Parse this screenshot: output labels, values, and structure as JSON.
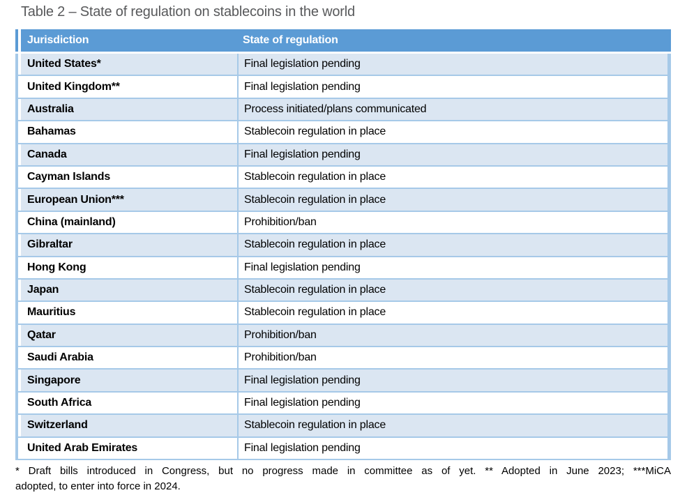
{
  "caption": "Table 2 – State of regulation on stablecoins in the world",
  "table": {
    "columns": [
      "Jurisdiction",
      "State of regulation"
    ],
    "rows": [
      {
        "jurisdiction": "United States*",
        "state": "Final legislation pending"
      },
      {
        "jurisdiction": "United Kingdom**",
        "state": "Final legislation pending"
      },
      {
        "jurisdiction": "Australia",
        "state": "Process initiated/plans communicated"
      },
      {
        "jurisdiction": "Bahamas",
        "state": "Stablecoin regulation in place"
      },
      {
        "jurisdiction": "Canada",
        "state": "Final legislation pending"
      },
      {
        "jurisdiction": "Cayman Islands",
        "state": "Stablecoin regulation in place"
      },
      {
        "jurisdiction": "European Union***",
        "state": "Stablecoin regulation in place"
      },
      {
        "jurisdiction": "China (mainland)",
        "state": "Prohibition/ban"
      },
      {
        "jurisdiction": "Gibraltar",
        "state": "Stablecoin regulation in place"
      },
      {
        "jurisdiction": "Hong Kong",
        "state": "Final legislation pending"
      },
      {
        "jurisdiction": "Japan",
        "state": "Stablecoin regulation in place"
      },
      {
        "jurisdiction": "Mauritius",
        "state": "Stablecoin regulation in place"
      },
      {
        "jurisdiction": "Qatar",
        "state": "Prohibition/ban"
      },
      {
        "jurisdiction": "Saudi Arabia",
        "state": "Prohibition/ban"
      },
      {
        "jurisdiction": "Singapore",
        "state": "Final legislation pending"
      },
      {
        "jurisdiction": "South Africa",
        "state": "Final legislation pending"
      },
      {
        "jurisdiction": "Switzerland",
        "state": "Stablecoin regulation in place"
      },
      {
        "jurisdiction": "United Arab Emirates",
        "state": "Final legislation pending"
      }
    ]
  },
  "footnote": {
    "line1": "* Draft bills introduced in Congress, but no progress made in committee as of yet. ** Adopted in June 2023; ***MiCA",
    "line2": "adopted, to enter into force in 2024.",
    "full": "* Draft bills introduced in Congress, but no progress made in committee as of yet. ** Adopted in June 2023; ***MiCA adopted, to enter into force in 2024."
  },
  "colors": {
    "header_bg": "#5B9BD5",
    "band_bg": "#DBE6F2",
    "border": "#A6C9E8",
    "header_text": "#FFFFFF",
    "title_text": "#58595B",
    "body_text": "#000000"
  },
  "chart_data": {
    "type": "table",
    "title": "Table 2 – State of regulation on stablecoins in the world",
    "columns": [
      "Jurisdiction",
      "State of regulation"
    ],
    "rows": [
      [
        "United States*",
        "Final legislation pending"
      ],
      [
        "United Kingdom**",
        "Final legislation pending"
      ],
      [
        "Australia",
        "Process initiated/plans communicated"
      ],
      [
        "Bahamas",
        "Stablecoin regulation in place"
      ],
      [
        "Canada",
        "Final legislation pending"
      ],
      [
        "Cayman Islands",
        "Stablecoin regulation in place"
      ],
      [
        "European Union***",
        "Stablecoin regulation in place"
      ],
      [
        "China (mainland)",
        "Prohibition/ban"
      ],
      [
        "Gibraltar",
        "Stablecoin regulation in place"
      ],
      [
        "Hong Kong",
        "Final legislation pending"
      ],
      [
        "Japan",
        "Stablecoin regulation in place"
      ],
      [
        "Mauritius",
        "Stablecoin regulation in place"
      ],
      [
        "Qatar",
        "Prohibition/ban"
      ],
      [
        "Saudi Arabia",
        "Prohibition/ban"
      ],
      [
        "Singapore",
        "Final legislation pending"
      ],
      [
        "South Africa",
        "Final legislation pending"
      ],
      [
        "Switzerland",
        "Stablecoin regulation in place"
      ],
      [
        "United Arab Emirates",
        "Final legislation pending"
      ]
    ],
    "layout": {
      "banded_rows": true,
      "band_start": "first_data_row"
    }
  }
}
